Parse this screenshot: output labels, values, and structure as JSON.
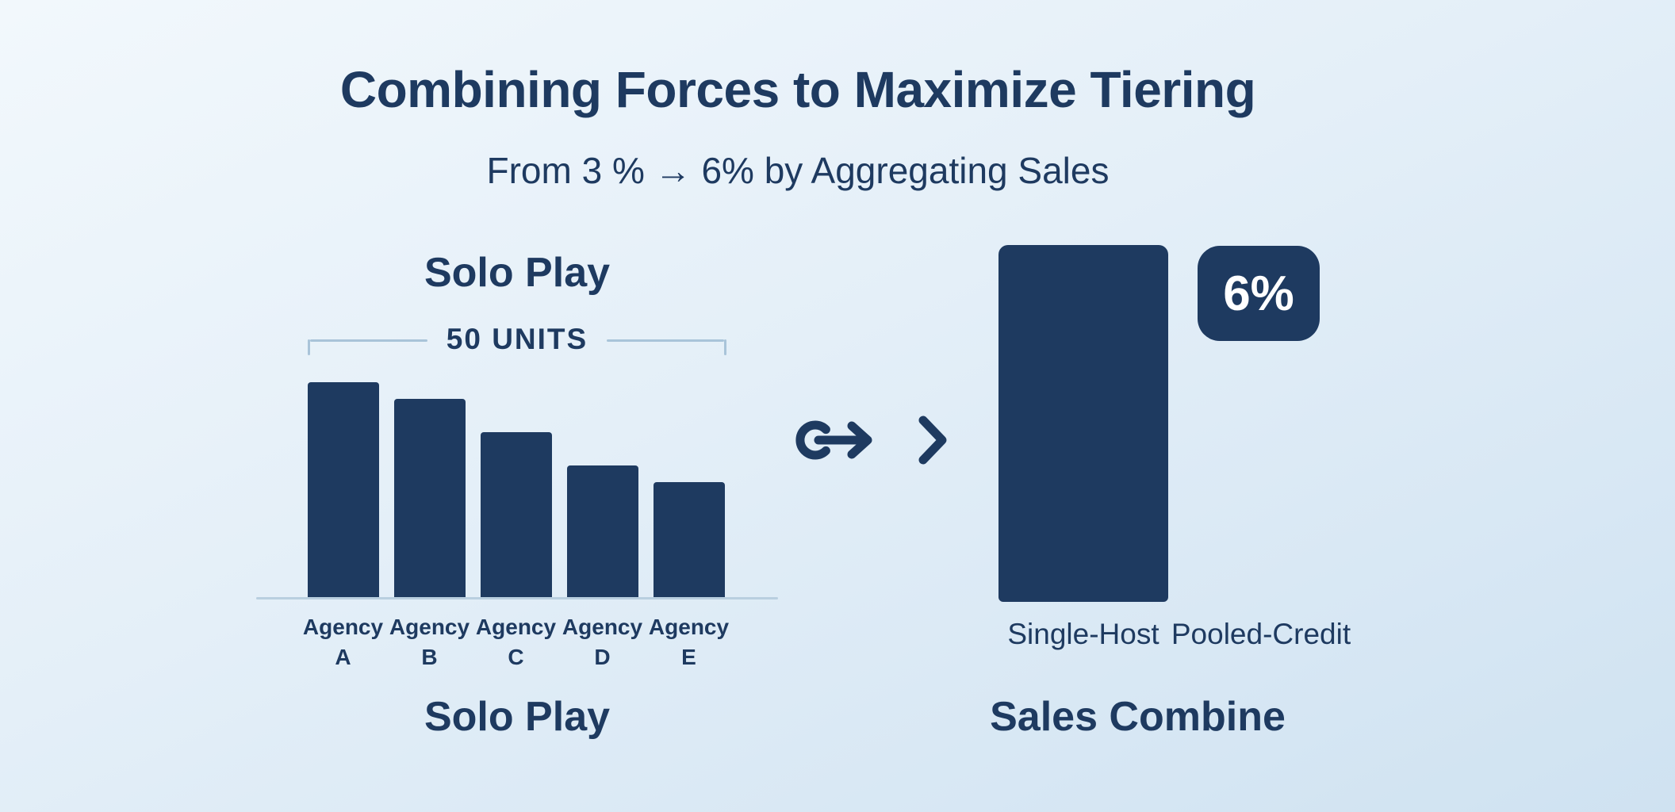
{
  "theme": {
    "navy": "#1e3a60",
    "background_start": "#f2f8fc",
    "background_end": "#cfe2f1",
    "axis_color": "#b9cfe0",
    "bracket_color": "#a9c4d9",
    "badge_text_color": "#ffffff"
  },
  "header": {
    "title": "Combining Forces to Maximize Tiering",
    "subtitle": "From 3 % → 6% by Aggregating Sales"
  },
  "solo": {
    "heading": "Solo Play",
    "bracket_label": "50 UNITS",
    "caption": "Solo Play"
  },
  "combine": {
    "badge_label": "6%",
    "bar_label": "Single-Host",
    "side_label": "Pooled-Credit",
    "caption": "Sales Combine"
  },
  "icons": {
    "link_arrow": "link-arrow-icon",
    "chevron": "chevron-right-icon"
  },
  "chart_data": [
    {
      "type": "bar",
      "title": "Solo Play",
      "categories": [
        "Agency A",
        "Agency B",
        "Agency C",
        "Agency D",
        "Agency E"
      ],
      "values": [
        13,
        12,
        10,
        8,
        7
      ],
      "annotation": "50 UNITS",
      "xlabel": "",
      "ylabel": "",
      "ylim": [
        0,
        14
      ],
      "grid": false,
      "legend": false,
      "note": "values estimated from descending bar heights; bracket marks 50 units total across the five agencies"
    },
    {
      "type": "bar",
      "title": "Sales Combine",
      "categories": [
        "Single-Host",
        "Pooled-Credit"
      ],
      "values": [
        50,
        null
      ],
      "annotations": [
        null,
        "6%"
      ],
      "ylim": [
        0,
        55
      ],
      "grid": false,
      "legend": false,
      "note": "single pooled bar of ~50 aggregated units over Single-Host; 6% tier badge beside Pooled-Credit label"
    }
  ]
}
